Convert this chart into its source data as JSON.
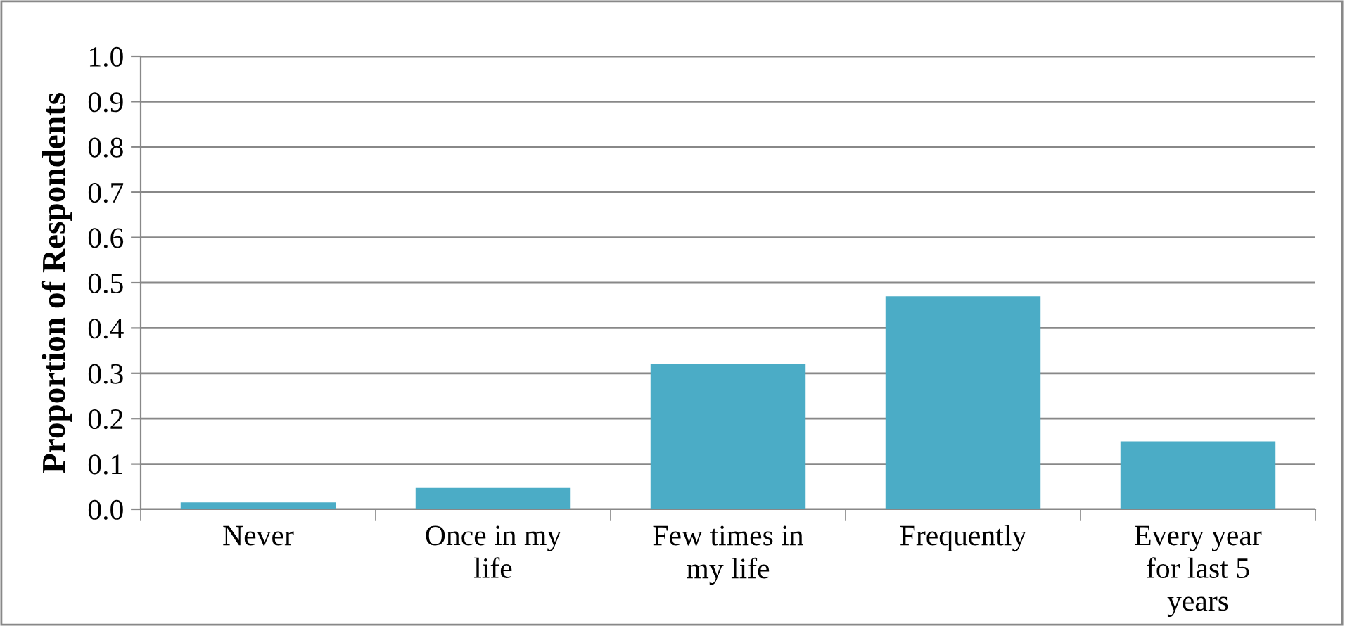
{
  "chart_data": {
    "type": "bar",
    "ylabel": "Proportion of Respondents",
    "categories": [
      "Never",
      "Once in my life",
      "Few times in my life",
      "Frequently",
      "Every year for last 5 years"
    ],
    "values": [
      0.015,
      0.047,
      0.32,
      0.47,
      0.15
    ],
    "color": "#4bacc6",
    "ylim": [
      0,
      1.0
    ],
    "yticks": [
      {
        "value": 0,
        "label": "0.0"
      },
      {
        "value": 0.1,
        "label": "0.1"
      },
      {
        "value": 0.2,
        "label": "0.2"
      },
      {
        "value": 0.3,
        "label": "0.3"
      },
      {
        "value": 0.4,
        "label": "0.4"
      },
      {
        "value": 0.5,
        "label": "0.5"
      },
      {
        "value": 0.6,
        "label": "0.6"
      },
      {
        "value": 0.7,
        "label": "0.7"
      },
      {
        "value": 0.8,
        "label": "0.8"
      },
      {
        "value": 0.9,
        "label": "0.9"
      },
      {
        "value": 1.0,
        "label": "1.0"
      }
    ],
    "grid": "y"
  }
}
